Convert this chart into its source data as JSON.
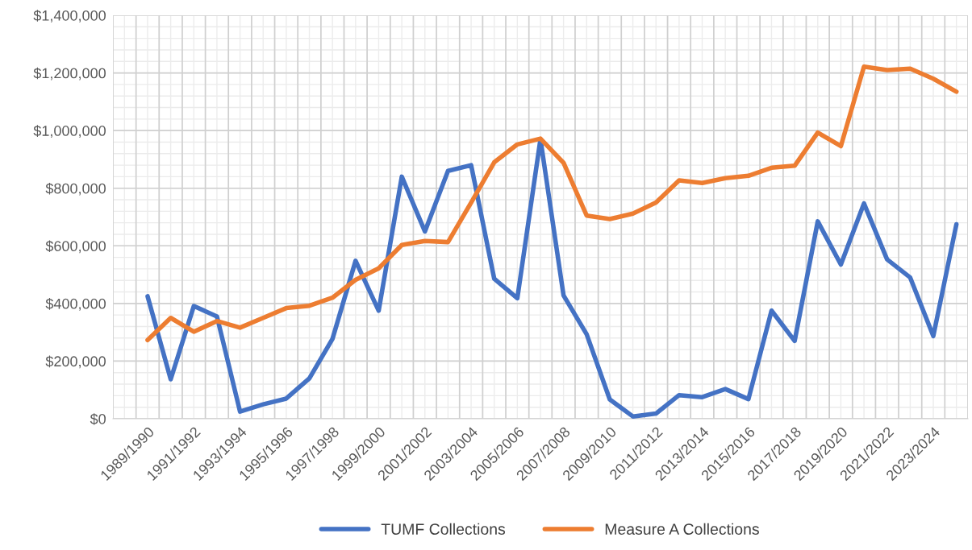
{
  "chart_data": {
    "type": "line",
    "categories": [
      "1989/1990",
      null,
      "1991/1992",
      null,
      "1993/1994",
      null,
      "1995/1996",
      null,
      "1997/1998",
      null,
      "1999/2000",
      null,
      "2001/2002",
      null,
      "2003/2004",
      null,
      "2005/2006",
      null,
      "2007/2008",
      null,
      "2009/2010",
      null,
      "2011/2012",
      null,
      "2013/2014",
      null,
      "2015/2016",
      null,
      "2017/2018",
      null,
      "2019/2020",
      null,
      "2021/2022",
      null,
      "2023/2024",
      null
    ],
    "series": [
      {
        "name": "TUMF Collections",
        "color": "#4472c4",
        "values": [
          425000,
          137000,
          391000,
          355000,
          25000,
          50000,
          70000,
          140000,
          277000,
          548000,
          375000,
          840000,
          650000,
          860000,
          880000,
          486000,
          418000,
          970000,
          428000,
          293000,
          67000,
          8000,
          18000,
          82000,
          75000,
          103000,
          68000,
          375000,
          270000,
          685000,
          535000,
          747000,
          553000,
          490000,
          287000,
          675000
        ]
      },
      {
        "name": "Measure A Collections",
        "color": "#ed7d31",
        "values": [
          273000,
          350000,
          302000,
          339000,
          316000,
          350000,
          384000,
          392000,
          420000,
          482000,
          522000,
          603000,
          617000,
          613000,
          750000,
          890000,
          952000,
          972000,
          888000,
          705000,
          693000,
          712000,
          750000,
          827000,
          818000,
          835000,
          843000,
          871000,
          878000,
          993000,
          946000,
          1222000,
          1210000,
          1215000,
          1180000,
          1135000
        ]
      }
    ],
    "ylim": [
      0,
      1400000
    ],
    "yticks": [
      {
        "value": 0,
        "label": "$0"
      },
      {
        "value": 200000,
        "label": "$200,000"
      },
      {
        "value": 400000,
        "label": "$400,000"
      },
      {
        "value": 600000,
        "label": "$600,000"
      },
      {
        "value": 800000,
        "label": "$800,000"
      },
      {
        "value": 1000000,
        "label": "$1,000,000"
      },
      {
        "value": 1200000,
        "label": "$1,200,000"
      },
      {
        "value": 1400000,
        "label": "$1,400,000"
      }
    ],
    "grid": true,
    "legend": "bottom",
    "marker": "none",
    "line_style": "solid"
  }
}
